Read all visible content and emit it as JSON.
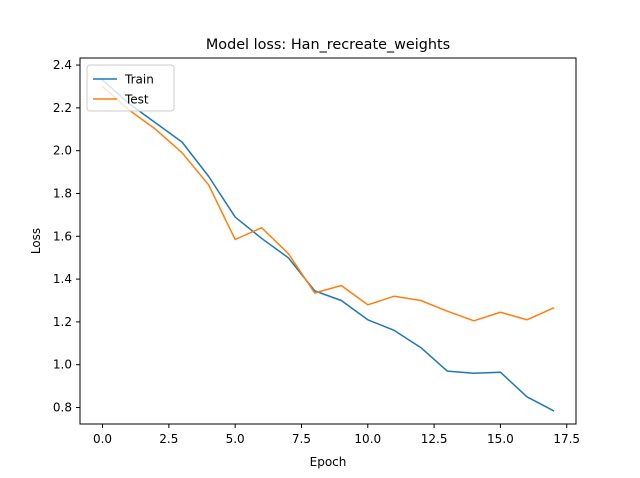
{
  "chart_data": {
    "type": "line",
    "title": "Model loss: Han_recreate_weights",
    "xlabel": "Epoch",
    "ylabel": "Loss",
    "xlim": [
      -0.85,
      17.85
    ],
    "ylim": [
      0.723,
      2.433
    ],
    "xticks": [
      0.0,
      2.5,
      5.0,
      7.5,
      10.0,
      12.5,
      15.0,
      17.5
    ],
    "xtick_labels": [
      "0.0",
      "2.5",
      "5.0",
      "7.5",
      "10.0",
      "12.5",
      "15.0",
      "17.5"
    ],
    "yticks": [
      0.8,
      1.0,
      1.2,
      1.4,
      1.6,
      1.8,
      2.0,
      2.2,
      2.4
    ],
    "ytick_labels": [
      "0.8",
      "1.0",
      "1.2",
      "1.4",
      "1.6",
      "1.8",
      "2.0",
      "2.2",
      "2.4"
    ],
    "grid": false,
    "legend_position": "upper-left",
    "x": [
      0,
      1,
      2,
      3,
      4,
      5,
      6,
      7,
      8,
      9,
      10,
      11,
      12,
      13,
      14,
      15,
      16,
      17
    ],
    "series": [
      {
        "name": "Train",
        "color": "#1f77b4",
        "values": [
          2.33,
          2.22,
          2.13,
          2.04,
          1.88,
          1.69,
          1.59,
          1.5,
          1.345,
          1.3,
          1.21,
          1.16,
          1.08,
          0.97,
          0.96,
          0.965,
          0.85,
          0.785
        ]
      },
      {
        "name": "Test",
        "color": "#ff7f0e",
        "values": [
          2.3,
          2.19,
          2.1,
          1.99,
          1.84,
          1.585,
          1.64,
          1.52,
          1.335,
          1.37,
          1.28,
          1.32,
          1.3,
          1.25,
          1.205,
          1.245,
          1.21,
          1.265
        ]
      }
    ]
  }
}
